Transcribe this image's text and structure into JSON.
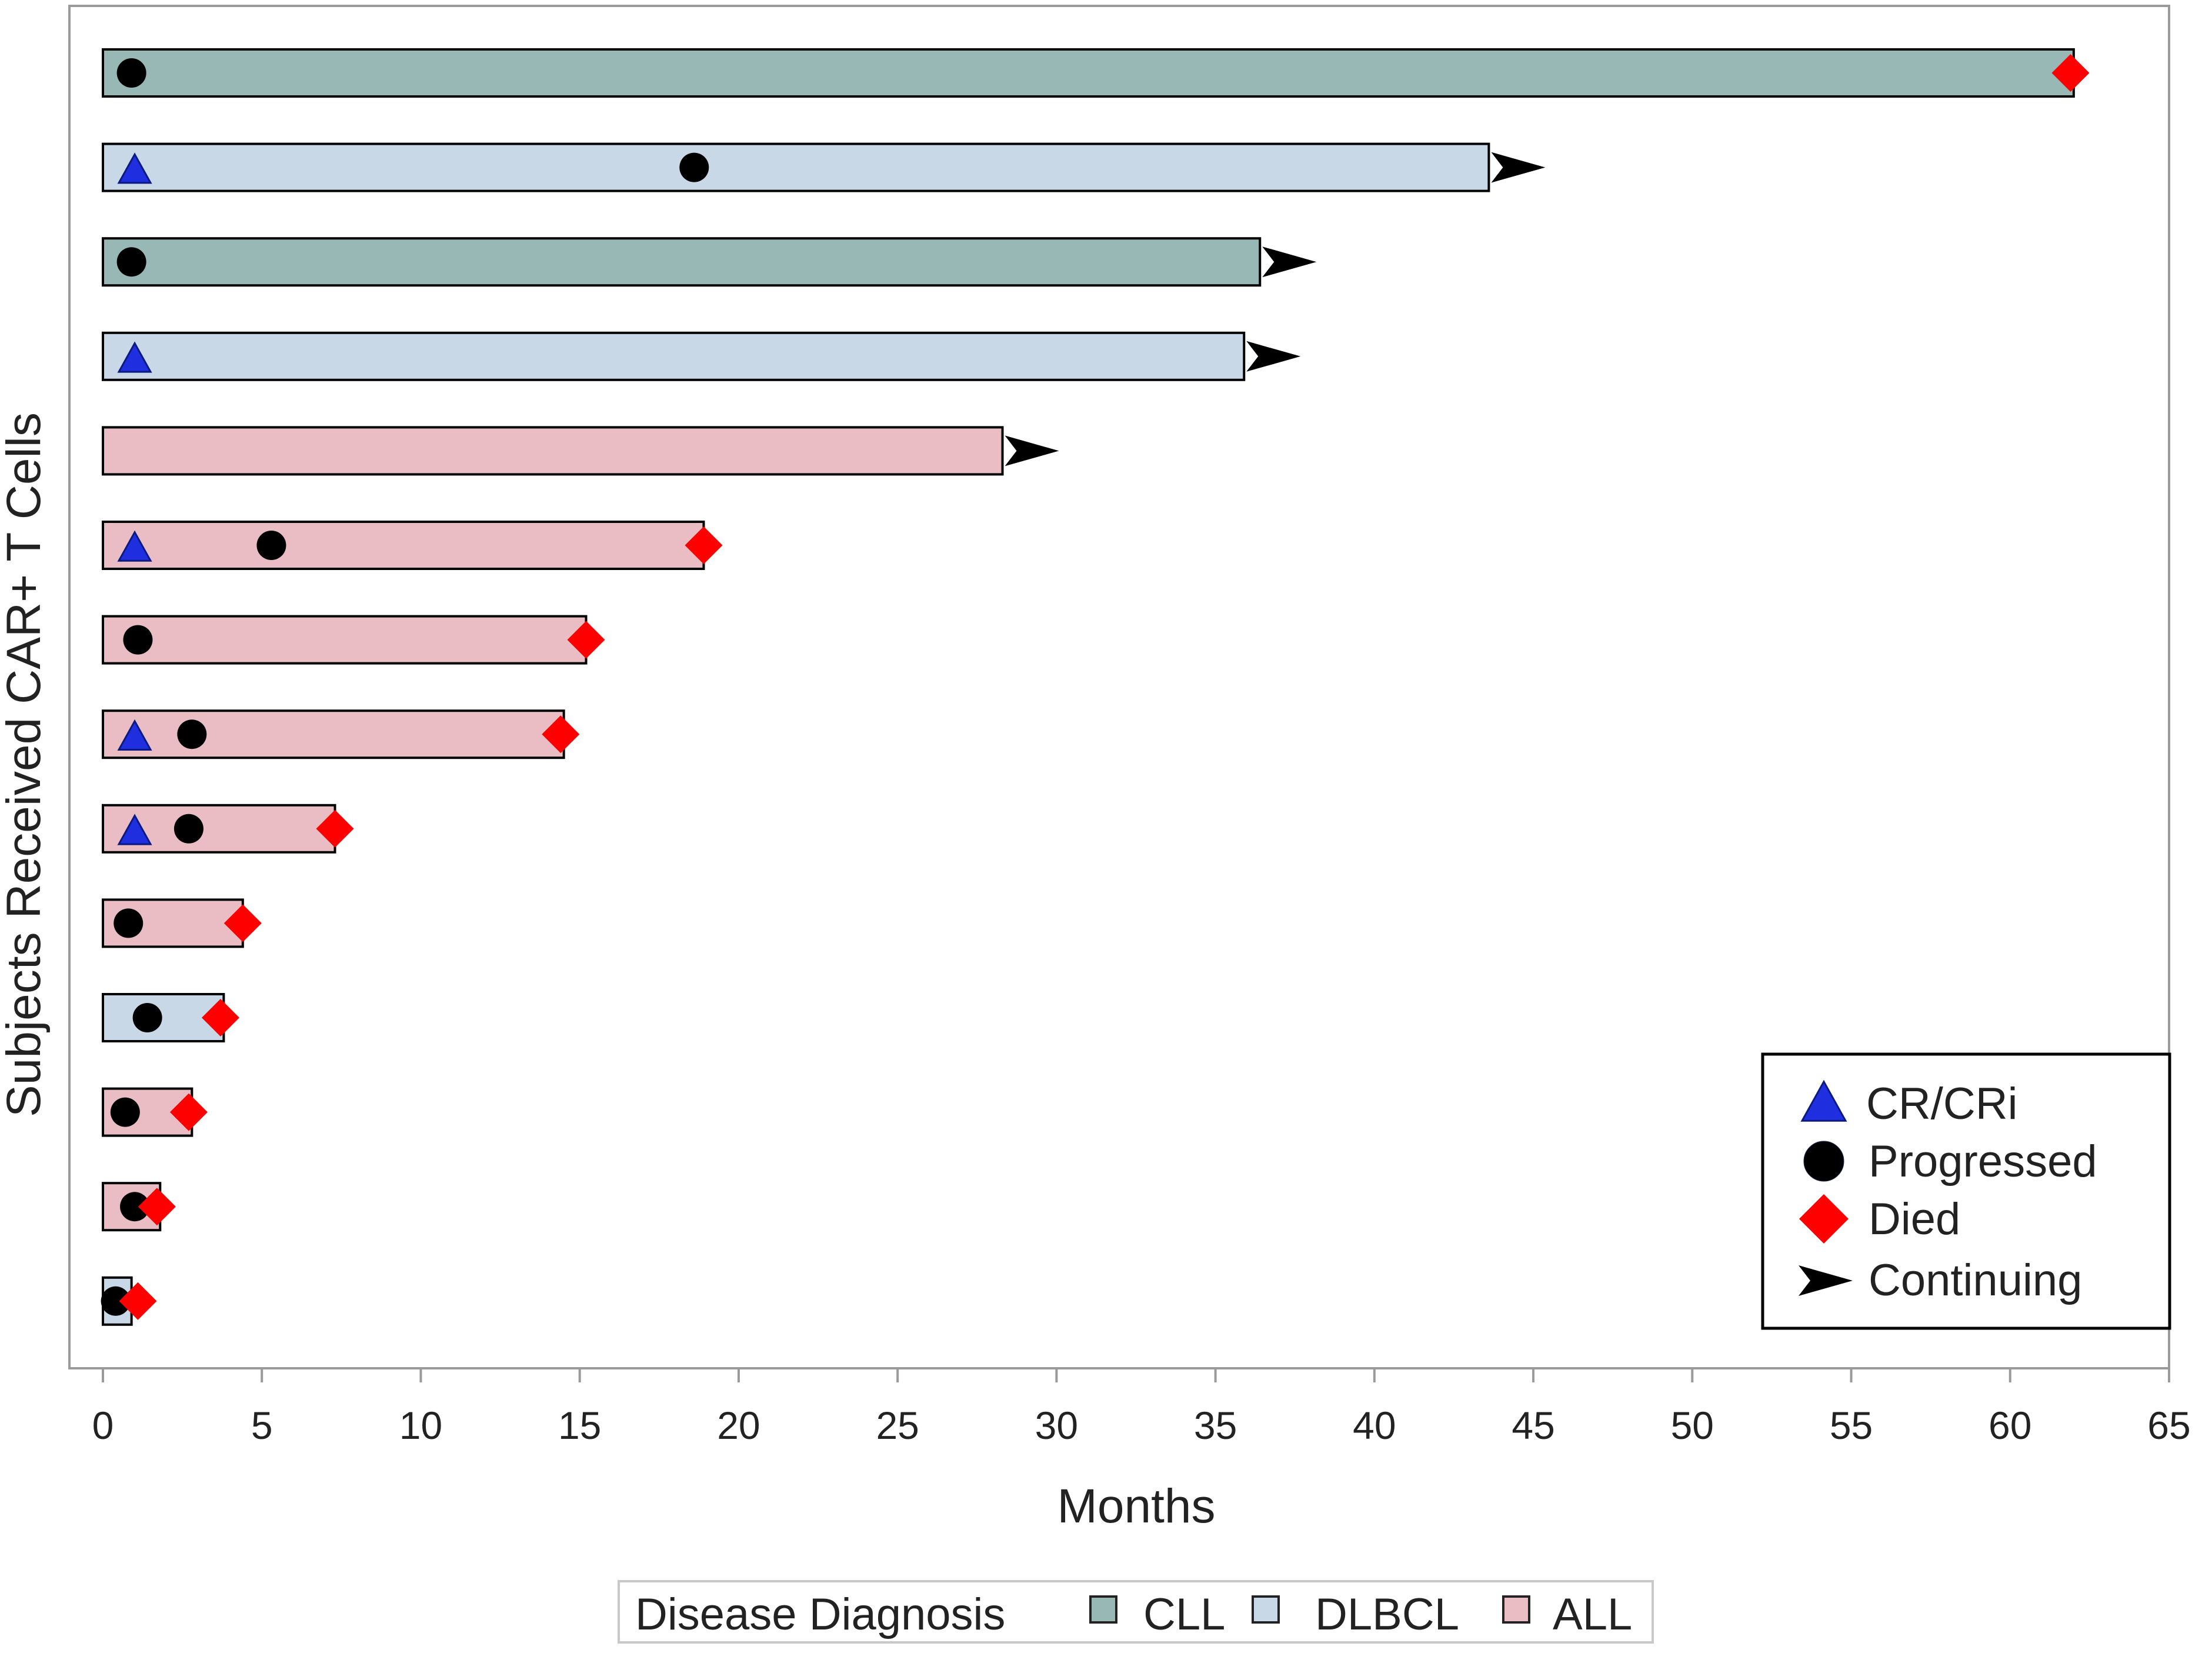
{
  "chart_data": {
    "type": "bar",
    "orientation": "horizontal",
    "title": "",
    "xlabel": "Months",
    "ylabel": "Subjects Received CAR+ T Cells",
    "xlim": [
      0,
      65
    ],
    "xticks": [
      0,
      5,
      10,
      15,
      20,
      25,
      30,
      35,
      40,
      45,
      50,
      55,
      60,
      65
    ],
    "grid": false,
    "diagnosis_legend": {
      "title": "Disease Diagnosis",
      "placement": "bottom",
      "entries": [
        {
          "key": "CLL",
          "label": "CLL",
          "color": "#97B8B5"
        },
        {
          "key": "DLBCL",
          "label": "DLBCL",
          "color": "#C9D8E7"
        },
        {
          "key": "ALL",
          "label": "ALL",
          "color": "#EABDC4"
        }
      ]
    },
    "event_legend": {
      "placement": "bottom-right",
      "entries": [
        {
          "key": "cr",
          "label": "CR/CRi",
          "color": "#1F2FE0"
        },
        {
          "key": "progressed",
          "label": "Progressed",
          "color": "#000000"
        },
        {
          "key": "died",
          "label": "Died",
          "color": "#FF0000"
        },
        {
          "key": "continuing",
          "label": "Continuing",
          "color": "#000000"
        }
      ]
    },
    "subjects": [
      {
        "diagnosis": "CLL",
        "duration": 62.0,
        "cr": null,
        "progressed": 0.9,
        "died": 61.9,
        "continuing": false
      },
      {
        "diagnosis": "DLBCL",
        "duration": 43.6,
        "cr": 1.0,
        "progressed": 18.6,
        "died": null,
        "continuing": true
      },
      {
        "diagnosis": "CLL",
        "duration": 36.4,
        "cr": null,
        "progressed": 0.9,
        "died": null,
        "continuing": true
      },
      {
        "diagnosis": "DLBCL",
        "duration": 35.9,
        "cr": 1.0,
        "progressed": null,
        "died": null,
        "continuing": true
      },
      {
        "diagnosis": "ALL",
        "duration": 28.3,
        "cr": null,
        "progressed": null,
        "died": null,
        "continuing": true
      },
      {
        "diagnosis": "ALL",
        "duration": 18.9,
        "cr": 1.0,
        "progressed": 5.3,
        "died": 18.9,
        "continuing": false
      },
      {
        "diagnosis": "ALL",
        "duration": 15.2,
        "cr": null,
        "progressed": 1.1,
        "died": 15.2,
        "continuing": false
      },
      {
        "diagnosis": "ALL",
        "duration": 14.5,
        "cr": 1.0,
        "progressed": 2.8,
        "died": 14.4,
        "continuing": false
      },
      {
        "diagnosis": "ALL",
        "duration": 7.3,
        "cr": 1.0,
        "progressed": 2.7,
        "died": 7.3,
        "continuing": false
      },
      {
        "diagnosis": "ALL",
        "duration": 4.4,
        "cr": null,
        "progressed": 0.8,
        "died": 4.4,
        "continuing": false
      },
      {
        "diagnosis": "DLBCL",
        "duration": 3.8,
        "cr": null,
        "progressed": 1.4,
        "died": 3.7,
        "continuing": false
      },
      {
        "diagnosis": "ALL",
        "duration": 2.8,
        "cr": null,
        "progressed": 0.7,
        "died": 2.7,
        "continuing": false
      },
      {
        "diagnosis": "ALL",
        "duration": 1.8,
        "cr": null,
        "progressed": 1.0,
        "died": 1.7,
        "continuing": false
      },
      {
        "diagnosis": "DLBCL",
        "duration": 0.9,
        "cr": null,
        "progressed": 0.4,
        "died": 1.1,
        "continuing": false
      }
    ]
  }
}
